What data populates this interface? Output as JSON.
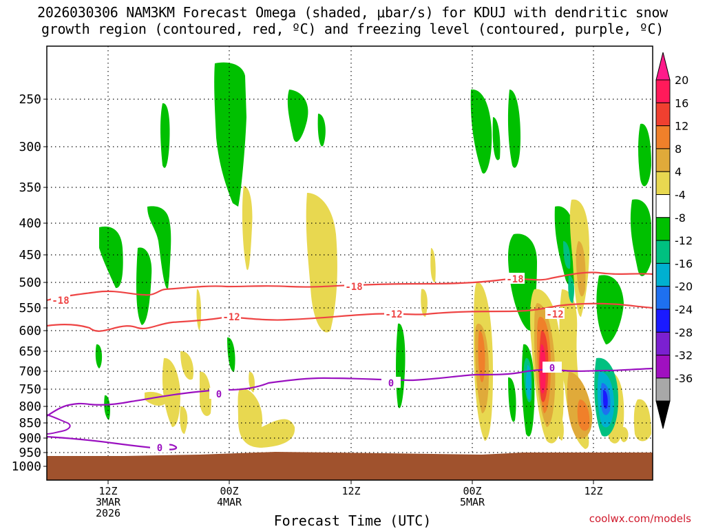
{
  "title_line1": "2026030306 NAM3KM Forecast Omega (shaded, μbar/s) for KDUJ with dendritic snow",
  "title_line2": "growth region (contoured, red, ºC) and freezing level (contoured, purple, ºC)",
  "credit": "coolwx.com/models",
  "chart_data": {
    "type": "heatmap",
    "xlabel": "Forecast Time (UTC)",
    "ylabel": "",
    "y_ticks": [
      "250",
      "300",
      "350",
      "400",
      "450",
      "500",
      "550",
      "600",
      "650",
      "700",
      "750",
      "800",
      "850",
      "900",
      "950",
      "1000"
    ],
    "x_ticks": [
      {
        "lines": [
          "12Z",
          "3MAR",
          "2026"
        ]
      },
      {
        "lines": [
          "00Z",
          "4MAR"
        ]
      },
      {
        "lines": [
          "12Z"
        ]
      },
      {
        "lines": [
          "00Z",
          "5MAR"
        ]
      },
      {
        "lines": [
          "12Z"
        ]
      }
    ],
    "colorbar": {
      "labels": [
        "20",
        "16",
        "12",
        "8",
        "4",
        "-4",
        "-8",
        "-12",
        "-16",
        "-20",
        "-24",
        "-28",
        "-32",
        "-36"
      ],
      "colors": [
        "#ff1a5a",
        "#f04030",
        "#f0802a",
        "#e0aa3a",
        "#e8d850",
        "#ffffff",
        "#00c000",
        "#00c080",
        "#00b0d0",
        "#1e70f0",
        "#1a1aff",
        "#7b20d0",
        "#a010c0",
        "#a8a8a8"
      ]
    },
    "contour_labels": {
      "dgz_minus18": "-18",
      "dgz_minus12": "-12",
      "freezing": "0"
    },
    "colors": {
      "dgz": "#ee4444",
      "freezing": "#9a10c0",
      "ground": "#a0522d",
      "up_green": "#00c000",
      "down_yellow": "#e8d850"
    }
  }
}
